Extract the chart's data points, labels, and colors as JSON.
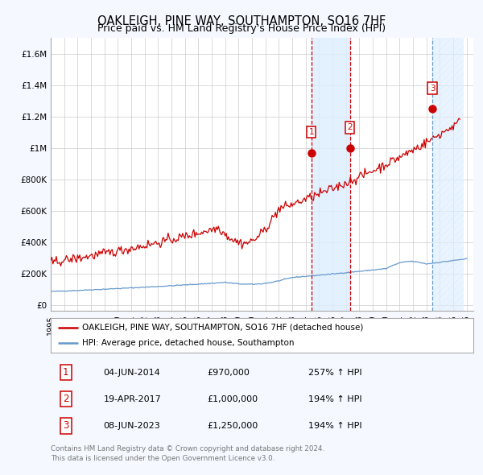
{
  "title": "OAKLEIGH, PINE WAY, SOUTHAMPTON, SO16 7HF",
  "subtitle": "Price paid vs. HM Land Registry's House Price Index (HPI)",
  "xlim_start": 1995.0,
  "xlim_end": 2026.5,
  "ylim_min": -40000,
  "ylim_max": 1700000,
  "yticks": [
    0,
    200000,
    400000,
    600000,
    800000,
    1000000,
    1200000,
    1400000,
    1600000
  ],
  "ytick_labels": [
    "£0",
    "£200K",
    "£400K",
    "£600K",
    "£800K",
    "£1M",
    "£1.2M",
    "£1.4M",
    "£1.6M"
  ],
  "xtick_years": [
    1995,
    1996,
    1997,
    1998,
    1999,
    2000,
    2001,
    2002,
    2003,
    2004,
    2005,
    2006,
    2007,
    2008,
    2009,
    2010,
    2011,
    2012,
    2013,
    2014,
    2015,
    2016,
    2017,
    2018,
    2019,
    2020,
    2021,
    2022,
    2023,
    2024,
    2025,
    2026
  ],
  "sale_dates": [
    2014.42,
    2017.3,
    2023.44
  ],
  "sale_prices": [
    970000,
    1000000,
    1250000
  ],
  "sale_labels": [
    "1",
    "2",
    "3"
  ],
  "sale_date_strs": [
    "04-JUN-2014",
    "19-APR-2017",
    "08-JUN-2023"
  ],
  "sale_price_strs": [
    "£970,000",
    "£1,000,000",
    "£1,250,000"
  ],
  "sale_pct_strs": [
    "257% ↑ HPI",
    "194% ↑ HPI",
    "194% ↑ HPI"
  ],
  "property_line_color": "#cc0000",
  "hpi_line_color": "#6699cc",
  "background_color": "#f5f8ff",
  "plot_bg_color": "#ffffff",
  "grid_color": "#cccccc",
  "sale_vline_colors": [
    "#cc0000",
    "#cc0000",
    "#6699cc"
  ],
  "shade_color": "#ddeeff",
  "legend_label_property": "OAKLEIGH, PINE WAY, SOUTHAMPTON, SO16 7HF (detached house)",
  "legend_label_hpi": "HPI: Average price, detached house, Southampton",
  "footnote_line1": "Contains HM Land Registry data © Crown copyright and database right 2024.",
  "footnote_line2": "This data is licensed under the Open Government Licence v3.0.",
  "title_fontsize": 10.5,
  "subtitle_fontsize": 9.0
}
